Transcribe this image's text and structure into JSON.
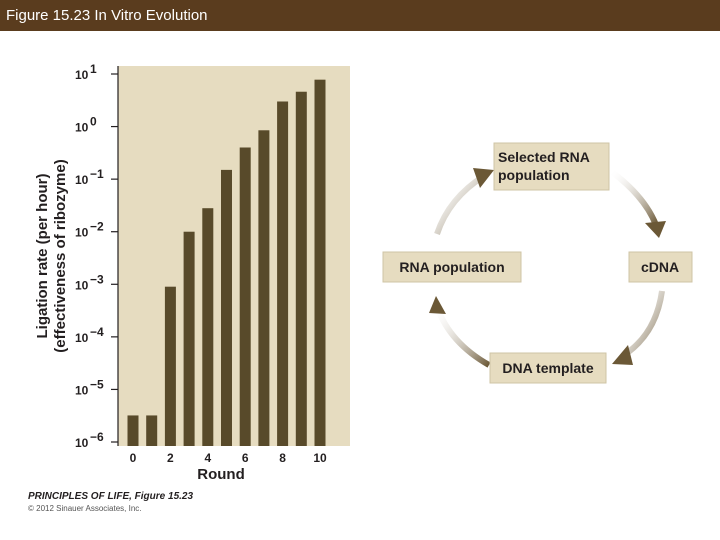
{
  "header": {
    "title": "Figure 15.23 In Vitro Evolution"
  },
  "footer": {
    "book_title": "PRINCIPLES OF LIFE, Figure 15.23",
    "copyright": "© 2012 Sinauer Associates, Inc."
  },
  "colors": {
    "title_bar": "#5a3c1e",
    "plot_bg": "#e6dcc0",
    "bar": "#584a2a",
    "box_bg": "#e6dcc0",
    "arrow": "#6b5836"
  },
  "chart_data": {
    "type": "bar",
    "xlabel": "Round",
    "ylabel_line1": "Ligation rate (per hour)",
    "ylabel_line2": "(effectiveness of ribozyme)",
    "log_scale": true,
    "ylim": [
      1e-06,
      10
    ],
    "y_ticks": [
      {
        "exp": "1"
      },
      {
        "exp": "0"
      },
      {
        "exp": "−1"
      },
      {
        "exp": "−2"
      },
      {
        "exp": "−3"
      },
      {
        "exp": "−4"
      },
      {
        "exp": "−5"
      },
      {
        "exp": "−6"
      }
    ],
    "x_tick_labels": [
      "0",
      "2",
      "4",
      "6",
      "8",
      "10"
    ],
    "categories": [
      0,
      1,
      2,
      3,
      4,
      5,
      6,
      7,
      8,
      9,
      10
    ],
    "values": [
      3.2e-06,
      3.2e-06,
      0.0009,
      0.01,
      0.028,
      0.15,
      0.4,
      0.85,
      3.0,
      4.6,
      7.8
    ],
    "grid": false
  },
  "cycle": {
    "nodes": [
      {
        "line1": "Selected RNA",
        "line2": "population"
      },
      {
        "line1": "c​DNA",
        "line2": ""
      },
      {
        "line1": "DNA template",
        "line2": ""
      },
      {
        "line1": "RNA population",
        "line2": ""
      }
    ]
  }
}
